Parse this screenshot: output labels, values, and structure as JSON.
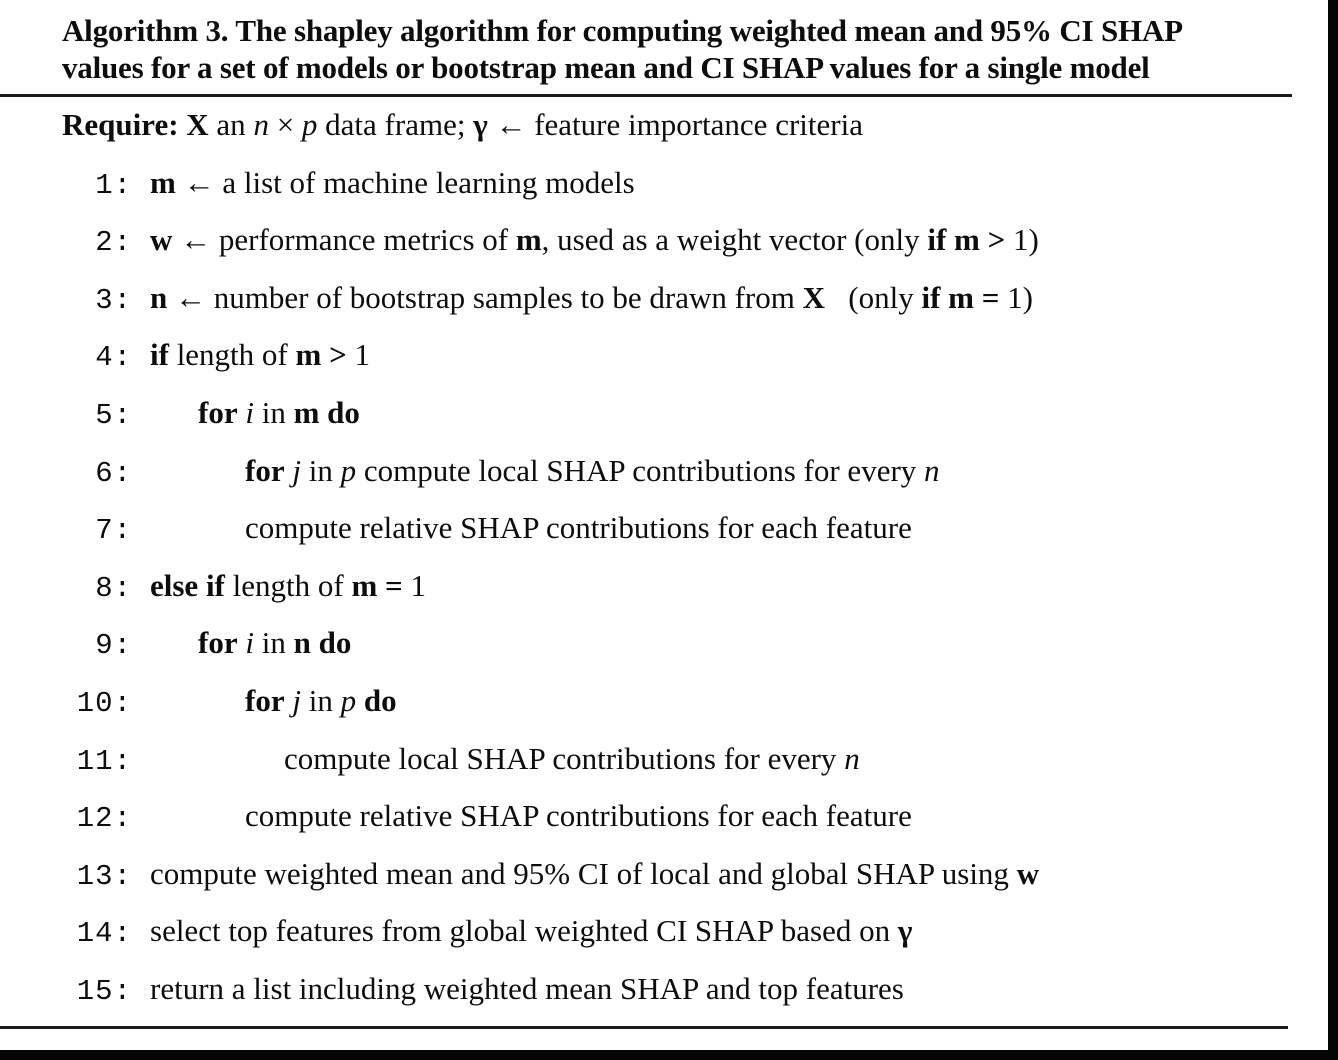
{
  "colors": {
    "text": "#0d0d0d",
    "background": "#ffffff",
    "rule": "#1b1b1b"
  },
  "title": {
    "text": "Algorithm 3. The shapley algorithm for computing weighted mean and 95% CI SHAP values for a set of models or bootstrap mean and CI SHAP values for a single model",
    "lines": [
      "Algorithm 3. The shapley algorithm for computing weighted mean and 95% CI SHAP",
      "values for a set of models or bootstrap mean and CI SHAP values for a single model"
    ]
  },
  "require_line": {
    "segments": [
      {
        "t": "Require: ",
        "b": 1
      },
      {
        "t": "X",
        "b": 1
      },
      {
        "t": " an "
      },
      {
        "t": "n",
        "i": 1
      },
      {
        "t": " × "
      },
      {
        "t": "p",
        "i": 1
      },
      {
        "t": " data frame; "
      },
      {
        "t": "γ",
        "b": 1
      },
      {
        "t": " ← feature importance criteria"
      }
    ]
  },
  "lines": [
    {
      "num": "1",
      "indent": 0,
      "segments": [
        {
          "t": "m",
          "b": 1
        },
        {
          "t": " ← a list of machine learning models"
        }
      ]
    },
    {
      "num": "2",
      "indent": 0,
      "segments": [
        {
          "t": "w",
          "b": 1
        },
        {
          "t": " ← performance metrics of "
        },
        {
          "t": "m",
          "b": 1
        },
        {
          "t": ", used as a weight vector (only "
        },
        {
          "t": "if",
          "b": 1
        },
        {
          "t": " "
        },
        {
          "t": "m",
          "b": 1
        },
        {
          "t": " "
        },
        {
          "t": ">",
          "b": 1
        },
        {
          "t": " 1)"
        }
      ]
    },
    {
      "num": "3",
      "indent": 0,
      "segments": [
        {
          "t": "n",
          "b": 1
        },
        {
          "t": " ← number of bootstrap samples to be drawn from "
        },
        {
          "t": "X",
          "b": 1
        },
        {
          "t": "   (only "
        },
        {
          "t": "if",
          "b": 1
        },
        {
          "t": " "
        },
        {
          "t": "m",
          "b": 1
        },
        {
          "t": " "
        },
        {
          "t": "=",
          "b": 1
        },
        {
          "t": " 1)"
        }
      ]
    },
    {
      "num": "4",
      "indent": 0,
      "segments": [
        {
          "t": "if",
          "b": 1
        },
        {
          "t": " length of "
        },
        {
          "t": "m",
          "b": 1
        },
        {
          "t": " "
        },
        {
          "t": ">",
          "b": 1
        },
        {
          "t": " 1"
        }
      ]
    },
    {
      "num": "5",
      "indent": 1,
      "segments": [
        {
          "t": "for",
          "b": 1
        },
        {
          "t": " "
        },
        {
          "t": "i",
          "i": 1
        },
        {
          "t": " in "
        },
        {
          "t": "m",
          "b": 1
        },
        {
          "t": " "
        },
        {
          "t": "do",
          "b": 1
        }
      ]
    },
    {
      "num": "6",
      "indent": 2,
      "segments": [
        {
          "t": "for",
          "b": 1
        },
        {
          "t": " "
        },
        {
          "t": "j",
          "i": 1
        },
        {
          "t": " in "
        },
        {
          "t": "p",
          "i": 1
        },
        {
          "t": " compute local SHAP contributions for every "
        },
        {
          "t": "n",
          "i": 1
        }
      ]
    },
    {
      "num": "7",
      "indent": 2,
      "segments": [
        {
          "t": "compute relative SHAP contributions for each feature"
        }
      ]
    },
    {
      "num": "8",
      "indent": 0,
      "segments": [
        {
          "t": "else if",
          "b": 1
        },
        {
          "t": " length of "
        },
        {
          "t": "m",
          "b": 1
        },
        {
          "t": " "
        },
        {
          "t": "=",
          "b": 1
        },
        {
          "t": " 1"
        }
      ]
    },
    {
      "num": "9",
      "indent": 1,
      "segments": [
        {
          "t": "for",
          "b": 1
        },
        {
          "t": " "
        },
        {
          "t": "i",
          "i": 1
        },
        {
          "t": " in "
        },
        {
          "t": "n",
          "b": 1
        },
        {
          "t": " "
        },
        {
          "t": "do",
          "b": 1
        }
      ]
    },
    {
      "num": "10",
      "indent": 2,
      "segments": [
        {
          "t": "for",
          "b": 1
        },
        {
          "t": " "
        },
        {
          "t": "j",
          "i": 1
        },
        {
          "t": " in "
        },
        {
          "t": "p",
          "i": 1
        },
        {
          "t": " "
        },
        {
          "t": "do",
          "b": 1
        }
      ]
    },
    {
      "num": "11",
      "indent": 3,
      "segments": [
        {
          "t": "compute local SHAP contributions for every "
        },
        {
          "t": "n",
          "i": 1
        }
      ]
    },
    {
      "num": "12",
      "indent": 2,
      "segments": [
        {
          "t": "compute relative SHAP contributions for each feature"
        }
      ]
    },
    {
      "num": "13",
      "indent": 0,
      "segments": [
        {
          "t": "compute weighted mean and 95% CI of local and global SHAP using "
        },
        {
          "t": "w",
          "b": 1
        }
      ]
    },
    {
      "num": "14",
      "indent": 0,
      "segments": [
        {
          "t": "select top features from global weighted CI SHAP based on "
        },
        {
          "t": "γ",
          "b": 1
        }
      ]
    },
    {
      "num": "15",
      "indent": 0,
      "segments": [
        {
          "t": "return a list including weighted mean SHAP and top features"
        }
      ]
    }
  ]
}
